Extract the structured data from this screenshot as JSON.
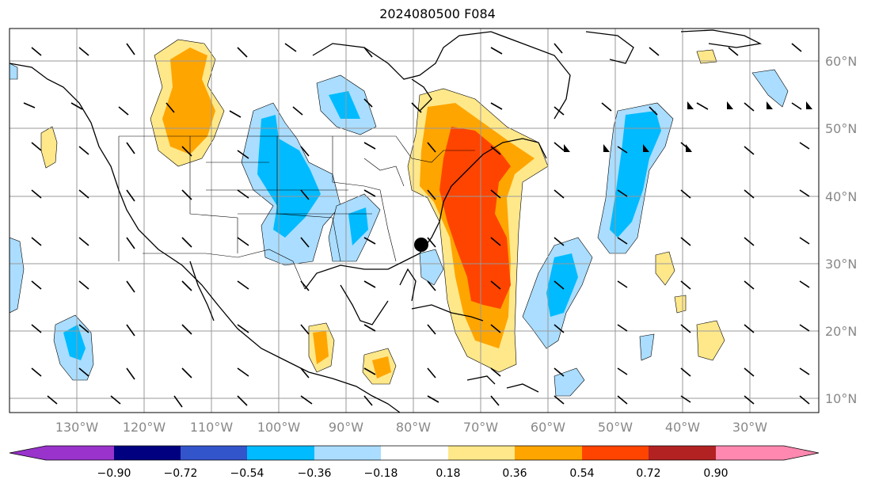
{
  "title": "2024080500 F084",
  "longitude_labels": [
    "130°W",
    "120°W",
    "110°W",
    "100°W",
    "90°W",
    "80°W",
    "70°W",
    "60°W",
    "50°W",
    "40°W",
    "30°W"
  ],
  "latitude_labels": [
    "60°N",
    "50°N",
    "40°N",
    "30°N",
    "20°N",
    "10°N"
  ],
  "colorbar": {
    "labels": [
      "−0.90",
      "−0.72",
      "−0.54",
      "−0.36",
      "−0.18",
      "0.18",
      "0.36",
      "0.54",
      "0.72",
      "0.90"
    ],
    "colors": [
      "#9933cc",
      "#000080",
      "#3355cc",
      "#00bbff",
      "#aaddff",
      "#ffffff",
      "#ffe88a",
      "#ffa500",
      "#ff4400",
      "#b22222",
      "#ff88b0"
    ]
  },
  "colors": {
    "land_line": "#000000",
    "grid": "#999999",
    "axis_label": "#888888"
  },
  "marker": "storm-center-dot"
}
